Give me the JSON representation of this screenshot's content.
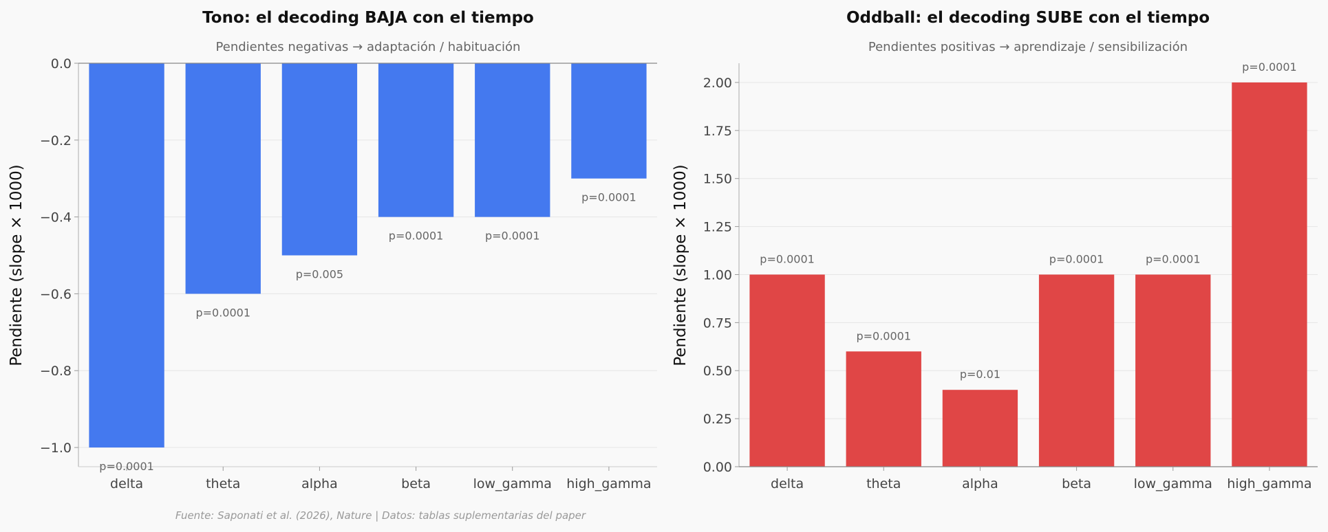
{
  "chart_data": [
    {
      "type": "bar",
      "title": "Tono: el decoding BAJA con el tiempo",
      "subtitle": "Pendientes negativas → adaptación / habituación",
      "xlabel": "",
      "ylabel": "Pendiente (slope × 1000)",
      "categories": [
        "delta",
        "theta",
        "alpha",
        "beta",
        "low_gamma",
        "high_gamma"
      ],
      "values": [
        -1.0,
        -0.6,
        -0.5,
        -0.4,
        -0.4,
        -0.3
      ],
      "annotations": [
        "p=0.0001",
        "p=0.0001",
        "p=0.005",
        "p=0.0001",
        "p=0.0001",
        "p=0.0001"
      ],
      "ylim": [
        -1.05,
        0.0
      ],
      "yticks": [
        0.0,
        -0.2,
        -0.4,
        -0.6,
        -0.8,
        -1.0
      ],
      "ytick_labels": [
        "0.0",
        "−0.2",
        "−0.4",
        "−0.6",
        "−0.8",
        "−1.0"
      ],
      "color": "#4479ef",
      "grid": true,
      "legend": "none"
    },
    {
      "type": "bar",
      "title": "Oddball: el decoding SUBE con el tiempo",
      "subtitle": "Pendientes positivas → aprendizaje / sensibilización",
      "xlabel": "",
      "ylabel": "Pendiente (slope × 1000)",
      "categories": [
        "delta",
        "theta",
        "alpha",
        "beta",
        "low_gamma",
        "high_gamma"
      ],
      "values": [
        1.0,
        0.6,
        0.4,
        1.0,
        1.0,
        2.0
      ],
      "annotations": [
        "p=0.0001",
        "p=0.0001",
        "p=0.01",
        "p=0.0001",
        "p=0.0001",
        "p=0.0001"
      ],
      "ylim": [
        0.0,
        2.1
      ],
      "yticks": [
        0.0,
        0.25,
        0.5,
        0.75,
        1.0,
        1.25,
        1.5,
        1.75,
        2.0
      ],
      "ytick_labels": [
        "0.00",
        "0.25",
        "0.50",
        "0.75",
        "1.00",
        "1.25",
        "1.50",
        "1.75",
        "2.00"
      ],
      "color": "#e04646",
      "grid": true,
      "legend": "none"
    }
  ],
  "footer": "Fuente: Saponati et al. (2026), Nature | Datos: tablas suplementarias del paper"
}
